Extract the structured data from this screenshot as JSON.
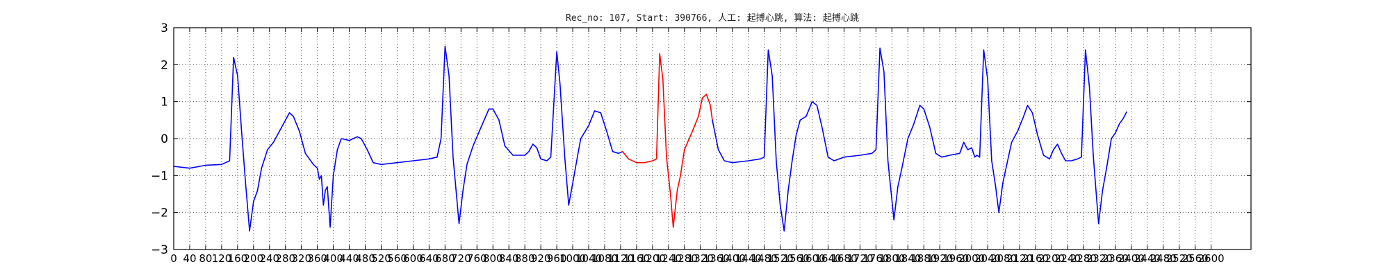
{
  "chart_data": {
    "type": "line",
    "title": "Rec_no: 107, Start: 390766, 人工: 起搏心跳, 算法: 起搏心跳",
    "xlabel": "",
    "ylabel": "",
    "xlim": [
      0,
      2700
    ],
    "ylim": [
      -3,
      3
    ],
    "grid": true,
    "yticks": [
      -3,
      -2,
      -1,
      0,
      1,
      2,
      3
    ],
    "ytick_labels": [
      "−3",
      "−2",
      "−1",
      "0",
      "1",
      "2",
      "3"
    ],
    "xticks": [
      0,
      40,
      80,
      120,
      160,
      200,
      240,
      280,
      320,
      360,
      400,
      440,
      480,
      520,
      560,
      600,
      640,
      680,
      720,
      760,
      800,
      840,
      880,
      920,
      960,
      1000,
      1040,
      1080,
      1120,
      1160,
      1200,
      1240,
      1280,
      1320,
      1360,
      1400,
      1440,
      1480,
      1520,
      1560,
      1600,
      1640,
      1680,
      1720,
      1760,
      1800,
      1840,
      1880,
      1920,
      1960,
      2000,
      2040,
      2080,
      2120,
      2160,
      2200,
      2240,
      2280,
      2320,
      2360,
      2400,
      2440,
      2480,
      2520,
      2560,
      2600
    ],
    "series": [
      {
        "color": "#0000ff",
        "points": [
          [
            0,
            -0.75
          ],
          [
            40,
            -0.8
          ],
          [
            80,
            -0.72
          ],
          [
            120,
            -0.7
          ],
          [
            130,
            -0.65
          ],
          [
            140,
            -0.6
          ],
          [
            150,
            2.2
          ],
          [
            160,
            1.7
          ],
          [
            170,
            0.2
          ],
          [
            180,
            -1.2
          ],
          [
            190,
            -2.5
          ],
          [
            200,
            -1.7
          ],
          [
            210,
            -1.4
          ],
          [
            220,
            -0.8
          ],
          [
            235,
            -0.3
          ],
          [
            250,
            -0.1
          ],
          [
            270,
            0.3
          ],
          [
            290,
            0.7
          ],
          [
            300,
            0.6
          ],
          [
            315,
            0.2
          ],
          [
            330,
            -0.4
          ],
          [
            350,
            -0.7
          ],
          [
            360,
            -0.8
          ],
          [
            365,
            -1.1
          ],
          [
            370,
            -1.0
          ],
          [
            375,
            -1.8
          ],
          [
            380,
            -1.4
          ],
          [
            385,
            -1.3
          ],
          [
            392,
            -2.4
          ],
          [
            400,
            -1.0
          ],
          [
            410,
            -0.3
          ],
          [
            420,
            0.0
          ],
          [
            440,
            -0.05
          ],
          [
            460,
            0.05
          ],
          [
            470,
            0.0
          ],
          [
            485,
            -0.3
          ],
          [
            500,
            -0.65
          ],
          [
            520,
            -0.7
          ],
          [
            560,
            -0.65
          ],
          [
            600,
            -0.6
          ],
          [
            640,
            -0.55
          ],
          [
            660,
            -0.5
          ],
          [
            670,
            0.0
          ],
          [
            680,
            2.5
          ],
          [
            690,
            1.7
          ],
          [
            700,
            -0.5
          ],
          [
            715,
            -2.3
          ],
          [
            725,
            -1.4
          ],
          [
            735,
            -0.7
          ],
          [
            750,
            -0.2
          ],
          [
            770,
            0.3
          ],
          [
            790,
            0.8
          ],
          [
            800,
            0.8
          ],
          [
            815,
            0.5
          ],
          [
            830,
            -0.2
          ],
          [
            850,
            -0.45
          ],
          [
            880,
            -0.45
          ],
          [
            890,
            -0.35
          ],
          [
            900,
            -0.15
          ],
          [
            910,
            -0.25
          ],
          [
            920,
            -0.55
          ],
          [
            935,
            -0.6
          ],
          [
            945,
            -0.5
          ],
          [
            960,
            2.35
          ],
          [
            968,
            1.5
          ],
          [
            980,
            -0.5
          ],
          [
            990,
            -1.8
          ],
          [
            1000,
            -1.2
          ],
          [
            1010,
            -0.6
          ],
          [
            1020,
            0.0
          ],
          [
            1040,
            0.35
          ],
          [
            1055,
            0.75
          ],
          [
            1070,
            0.7
          ],
          [
            1085,
            0.2
          ],
          [
            1100,
            -0.35
          ],
          [
            1115,
            -0.4
          ],
          [
            1125,
            -0.35
          ]
        ]
      },
      {
        "color": "#ff0000",
        "points": [
          [
            1125,
            -0.35
          ],
          [
            1140,
            -0.55
          ],
          [
            1160,
            -0.65
          ],
          [
            1180,
            -0.65
          ],
          [
            1200,
            -0.6
          ],
          [
            1210,
            -0.55
          ],
          [
            1218,
            2.3
          ],
          [
            1226,
            1.6
          ],
          [
            1235,
            -0.5
          ],
          [
            1245,
            -1.5
          ],
          [
            1252,
            -2.4
          ],
          [
            1262,
            -1.4
          ],
          [
            1270,
            -1.0
          ],
          [
            1280,
            -0.3
          ],
          [
            1300,
            0.2
          ],
          [
            1315,
            0.6
          ],
          [
            1325,
            1.1
          ],
          [
            1335,
            1.2
          ],
          [
            1345,
            0.9
          ],
          [
            1350,
            0.5
          ]
        ]
      },
      {
        "color": "#0000ff",
        "points": [
          [
            1350,
            0.5
          ],
          [
            1365,
            -0.3
          ],
          [
            1380,
            -0.6
          ],
          [
            1400,
            -0.65
          ],
          [
            1440,
            -0.6
          ],
          [
            1470,
            -0.55
          ],
          [
            1480,
            -0.5
          ],
          [
            1490,
            2.4
          ],
          [
            1500,
            1.7
          ],
          [
            1510,
            -0.6
          ],
          [
            1520,
            -1.8
          ],
          [
            1530,
            -2.5
          ],
          [
            1540,
            -1.4
          ],
          [
            1550,
            -0.6
          ],
          [
            1560,
            0.1
          ],
          [
            1570,
            0.5
          ],
          [
            1585,
            0.6
          ],
          [
            1600,
            1.0
          ],
          [
            1612,
            0.9
          ],
          [
            1625,
            0.3
          ],
          [
            1640,
            -0.5
          ],
          [
            1655,
            -0.6
          ],
          [
            1680,
            -0.5
          ],
          [
            1720,
            -0.45
          ],
          [
            1750,
            -0.4
          ],
          [
            1760,
            -0.3
          ],
          [
            1770,
            2.45
          ],
          [
            1780,
            1.8
          ],
          [
            1790,
            -0.6
          ],
          [
            1805,
            -2.2
          ],
          [
            1815,
            -1.3
          ],
          [
            1825,
            -0.8
          ],
          [
            1840,
            0.0
          ],
          [
            1855,
            0.4
          ],
          [
            1870,
            0.9
          ],
          [
            1880,
            0.8
          ],
          [
            1895,
            0.3
          ],
          [
            1910,
            -0.4
          ],
          [
            1925,
            -0.5
          ],
          [
            1945,
            -0.45
          ],
          [
            1970,
            -0.4
          ],
          [
            1980,
            -0.1
          ],
          [
            1990,
            -0.3
          ],
          [
            2000,
            -0.25
          ],
          [
            2008,
            -0.5
          ],
          [
            2013,
            -0.45
          ],
          [
            2020,
            -0.5
          ],
          [
            2030,
            2.4
          ],
          [
            2040,
            1.6
          ],
          [
            2050,
            -0.6
          ],
          [
            2060,
            -1.3
          ],
          [
            2068,
            -2.0
          ],
          [
            2078,
            -1.2
          ],
          [
            2090,
            -0.6
          ],
          [
            2100,
            -0.1
          ],
          [
            2115,
            0.2
          ],
          [
            2130,
            0.6
          ],
          [
            2140,
            0.9
          ],
          [
            2152,
            0.7
          ],
          [
            2165,
            0.1
          ],
          [
            2180,
            -0.45
          ],
          [
            2195,
            -0.55
          ],
          [
            2205,
            -0.3
          ],
          [
            2215,
            -0.15
          ],
          [
            2225,
            -0.4
          ],
          [
            2235,
            -0.6
          ],
          [
            2250,
            -0.6
          ],
          [
            2265,
            -0.55
          ],
          [
            2275,
            -0.5
          ],
          [
            2285,
            2.4
          ],
          [
            2295,
            1.4
          ],
          [
            2305,
            -0.5
          ],
          [
            2318,
            -2.3
          ],
          [
            2328,
            -1.4
          ],
          [
            2338,
            -0.8
          ],
          [
            2350,
            0.0
          ],
          [
            2360,
            0.15
          ],
          [
            2370,
            0.4
          ],
          [
            2380,
            0.55
          ],
          [
            2388,
            0.72
          ]
        ]
      }
    ]
  }
}
